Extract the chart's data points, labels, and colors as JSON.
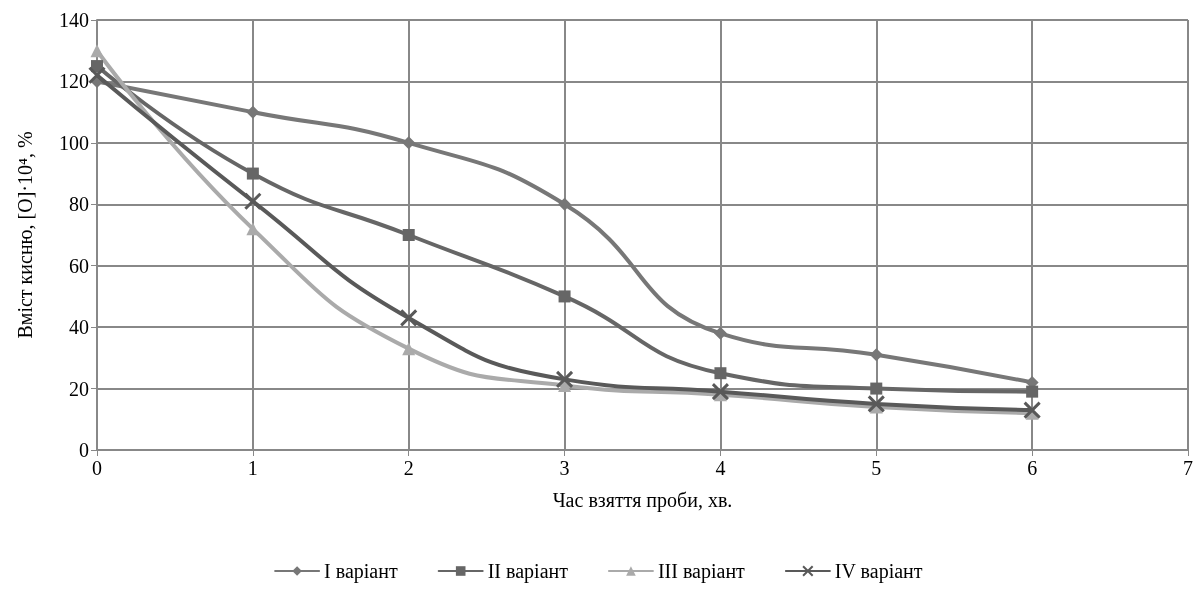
{
  "chart_data": {
    "type": "line",
    "xlabel": "Час взяття проби, хв.",
    "ylabel": "Вміст кисню, [O]·10⁴, %",
    "x": [
      0,
      1,
      2,
      3,
      4,
      5,
      6
    ],
    "series": [
      {
        "name": "I варіант",
        "color": "#777777",
        "marker": "diamond",
        "values": [
          120,
          110,
          100,
          80,
          38,
          31,
          22
        ]
      },
      {
        "name": "II варіант",
        "color": "#666666",
        "marker": "square",
        "values": [
          125,
          90,
          70,
          50,
          25,
          20,
          19
        ]
      },
      {
        "name": "III варіант",
        "color": "#aaaaaa",
        "marker": "triangle",
        "values": [
          130,
          72,
          33,
          21,
          18,
          14,
          12
        ]
      },
      {
        "name": "IV варіант",
        "color": "#595959",
        "marker": "cross",
        "values": [
          122,
          81,
          43,
          23,
          19,
          15,
          13
        ]
      }
    ],
    "xlim": [
      0,
      7
    ],
    "xticks": [
      0,
      1,
      2,
      3,
      4,
      5,
      6,
      7
    ],
    "ylim": [
      0,
      140
    ],
    "yticks": [
      0,
      20,
      40,
      60,
      80,
      100,
      120,
      140
    ],
    "grid": true,
    "legend": "bottom",
    "line_style": "solid"
  }
}
